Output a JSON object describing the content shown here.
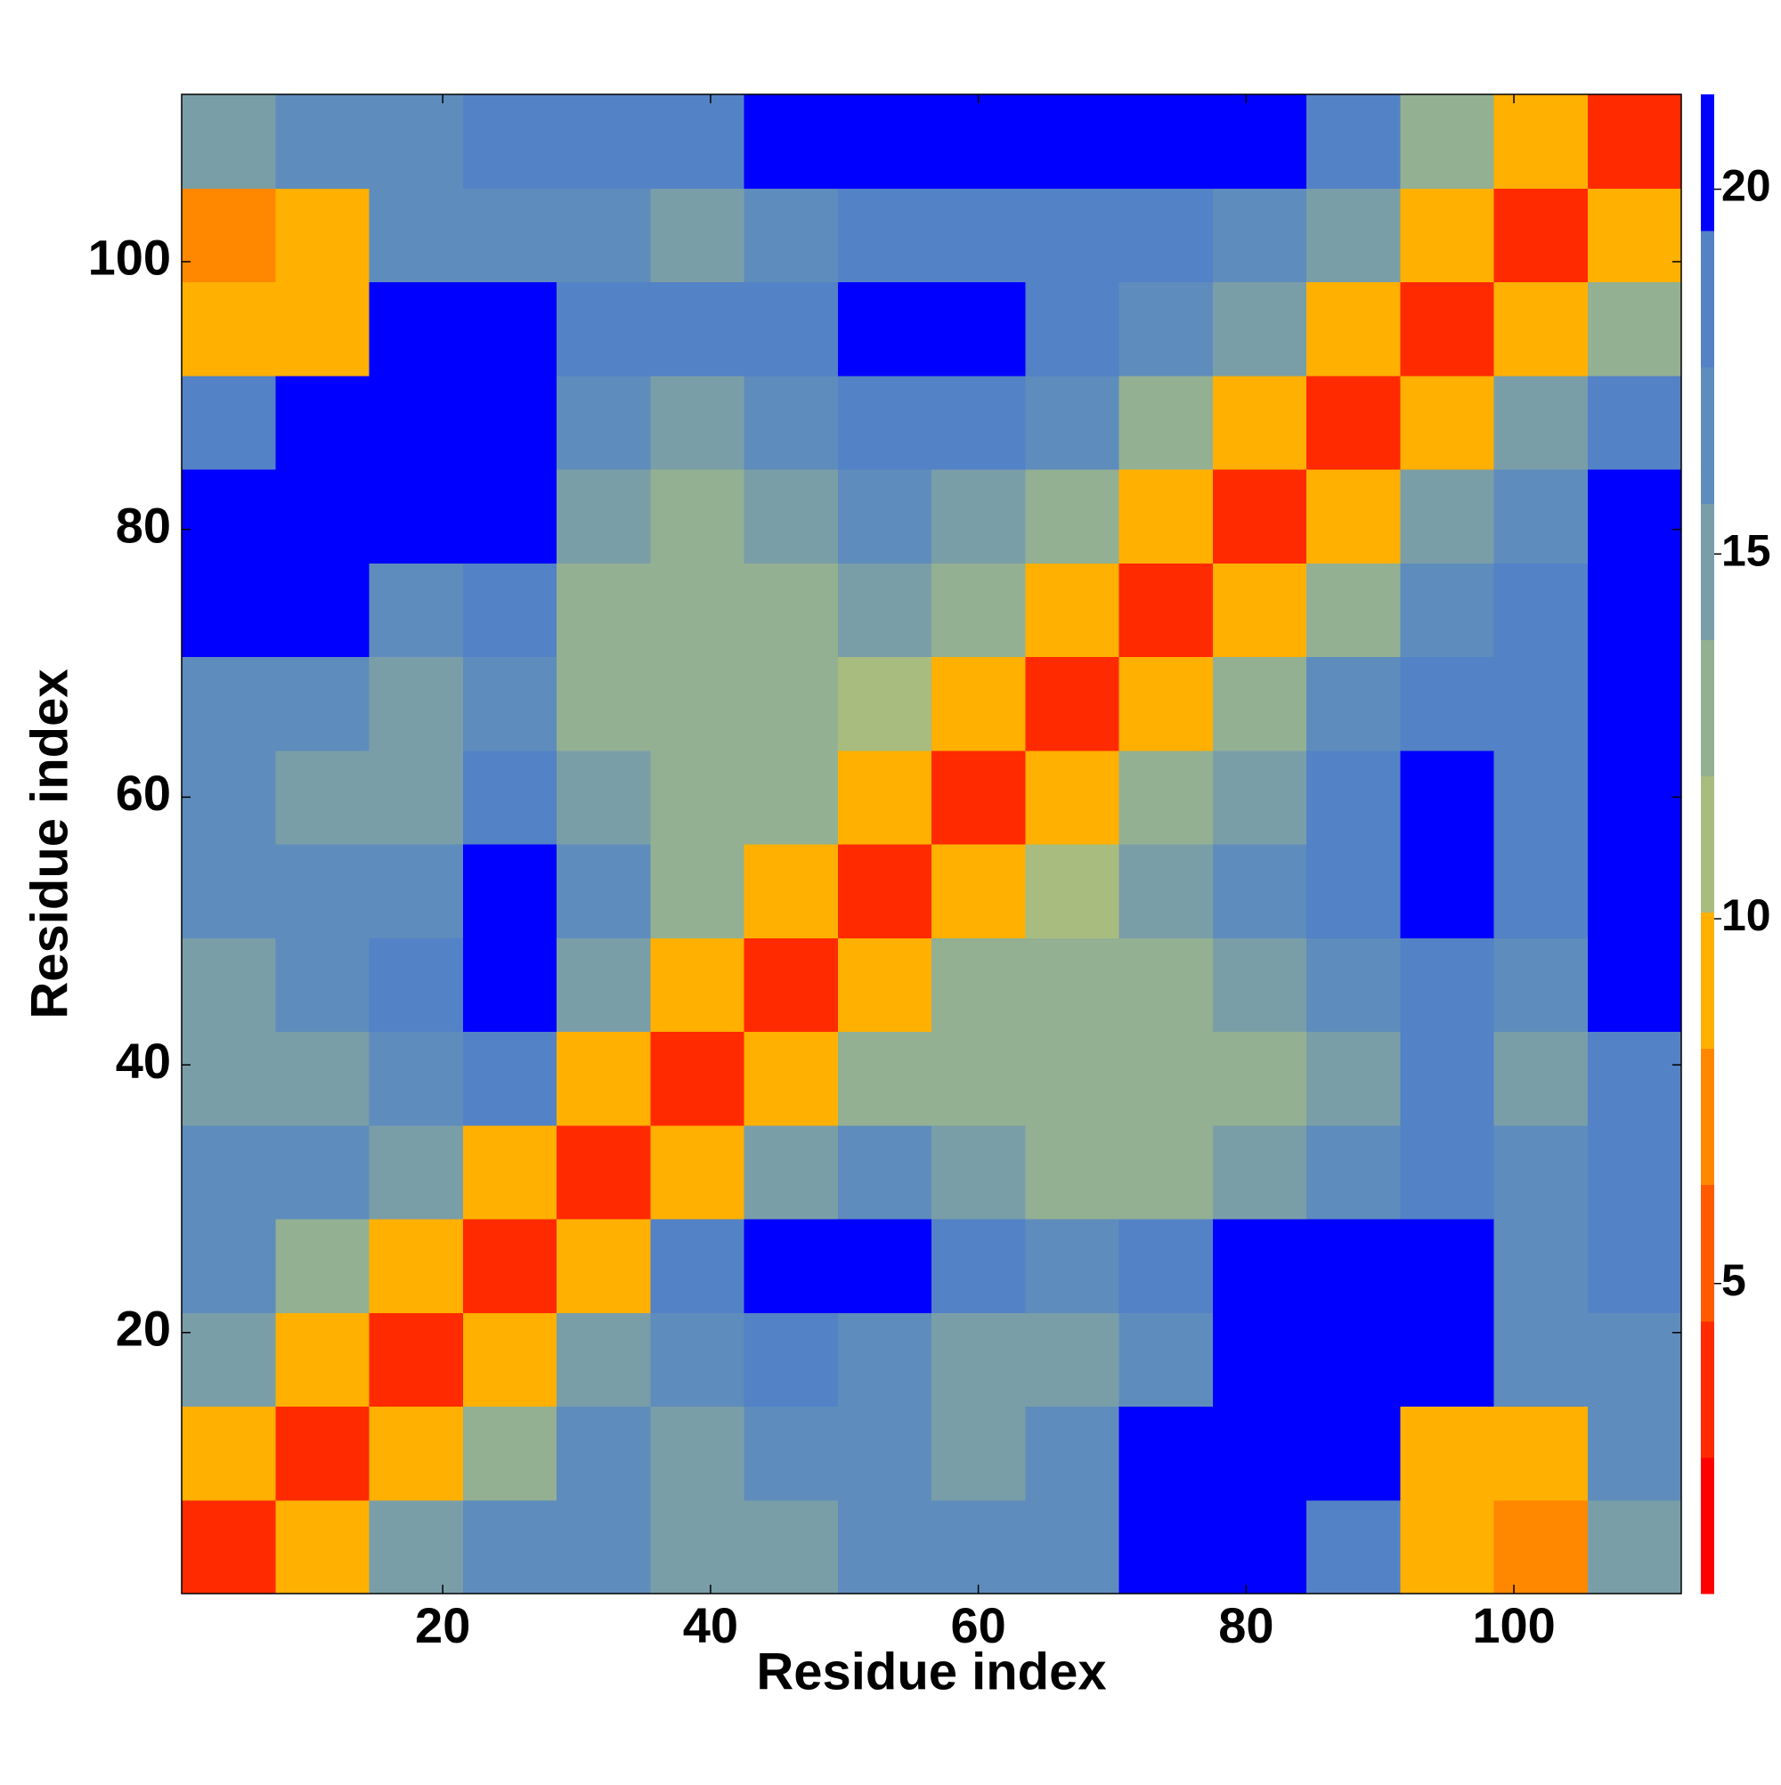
{
  "chart_data": {
    "type": "heatmap",
    "xlabel": "Residue index",
    "ylabel": "Residue index",
    "x_bins": [
      0.5,
      7.5,
      14.5,
      21.5,
      28.5,
      35.5,
      42.5,
      49.5,
      56.5,
      63.5,
      70.5,
      77.5,
      84.5,
      91.5,
      98.5,
      105.5,
      112.5
    ],
    "y_bins": [
      0.5,
      7.5,
      14.5,
      21.5,
      28.5,
      35.5,
      42.5,
      49.5,
      56.5,
      63.5,
      70.5,
      77.5,
      84.5,
      91.5,
      98.5,
      105.5,
      112.5
    ],
    "z": [
      [
        4,
        9,
        15,
        17,
        16,
        14,
        15,
        16,
        16,
        17,
        20,
        21,
        19,
        9,
        8,
        14
      ],
      [
        9,
        4,
        9,
        13,
        16,
        15,
        17,
        16,
        15,
        16,
        20,
        21,
        20,
        9,
        10,
        16
      ],
      [
        15,
        9,
        4,
        9,
        14,
        17,
        18,
        17,
        15,
        15,
        17,
        20,
        21,
        20,
        16,
        17
      ],
      [
        17,
        13,
        9,
        4,
        9,
        18,
        20,
        21,
        19,
        17,
        19,
        21,
        21,
        21,
        17,
        19
      ],
      [
        16,
        16,
        14,
        9,
        4,
        9,
        14,
        17,
        15,
        12,
        13,
        15,
        17,
        19,
        16,
        18
      ],
      [
        14,
        15,
        17,
        18,
        9,
        4,
        9,
        13,
        13,
        12,
        12,
        12,
        14,
        18,
        15,
        18
      ],
      [
        15,
        17,
        18,
        20,
        14,
        9,
        4,
        9,
        12,
        13,
        13,
        14,
        17,
        19,
        17,
        20
      ],
      [
        16,
        16,
        17,
        21,
        17,
        13,
        9,
        4,
        9,
        11,
        14,
        16,
        18,
        21,
        19,
        21
      ],
      [
        16,
        15,
        15,
        19,
        15,
        13,
        12,
        9,
        4,
        9,
        12,
        15,
        18,
        20,
        19,
        21
      ],
      [
        17,
        16,
        15,
        17,
        12,
        12,
        13,
        11,
        9,
        4,
        9,
        13,
        16,
        19,
        19,
        21
      ],
      [
        20,
        20,
        17,
        19,
        13,
        12,
        13,
        14,
        12,
        9,
        4,
        9,
        13,
        17,
        19,
        21
      ],
      [
        21,
        21,
        20,
        21,
        15,
        12,
        14,
        16,
        15,
        13,
        9,
        4,
        9,
        14,
        17,
        20
      ],
      [
        19,
        20,
        21,
        21,
        17,
        14,
        17,
        18,
        18,
        16,
        13,
        9,
        4,
        9,
        14,
        18
      ],
      [
        9,
        9,
        20,
        21,
        19,
        18,
        19,
        21,
        20,
        19,
        17,
        14,
        9,
        4,
        9,
        13
      ],
      [
        8,
        10,
        16,
        17,
        16,
        15,
        17,
        19,
        19,
        19,
        19,
        17,
        14,
        9,
        4,
        9
      ],
      [
        14,
        16,
        17,
        19,
        18,
        18,
        20,
        21,
        21,
        21,
        21,
        20,
        18,
        13,
        9,
        4
      ]
    ],
    "xlim": [
      0.5,
      112.5
    ],
    "ylim": [
      0.5,
      112.5
    ],
    "xticks": [
      20,
      40,
      60,
      80,
      100
    ],
    "yticks": [
      20,
      40,
      60,
      80,
      100
    ],
    "zlim": [
      0.75,
      21.3
    ],
    "zticks": [
      5,
      10,
      15,
      20
    ],
    "colormap": [
      "#ff0000",
      "#ff2a00",
      "#ff5a00",
      "#ff8800",
      "#ffb000",
      "#a9bc80",
      "#93b092",
      "#7a9ea8",
      "#5e8cbc",
      "#5382c6",
      "#0000ff"
    ]
  }
}
